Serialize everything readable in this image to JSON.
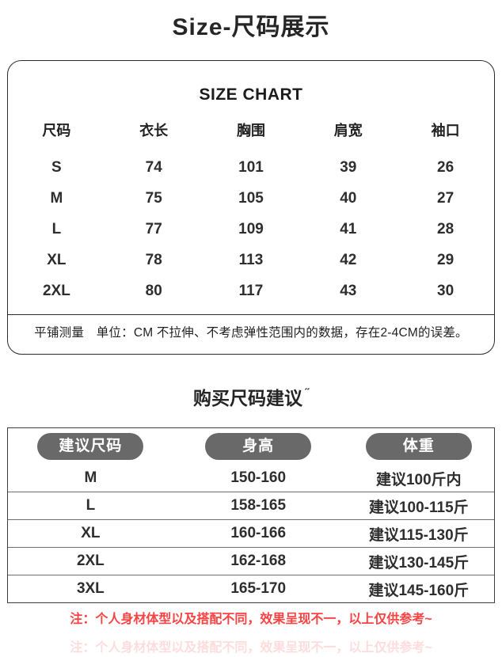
{
  "page": {
    "title": "Size-尺码展示"
  },
  "size_chart": {
    "heading": "SIZE CHART",
    "columns": [
      "尺码",
      "衣长",
      "胸围",
      "肩宽",
      "袖口"
    ],
    "rows": [
      [
        "S",
        "74",
        "101",
        "39",
        "26"
      ],
      [
        "M",
        "75",
        "105",
        "40",
        "27"
      ],
      [
        "L",
        "77",
        "109",
        "41",
        "28"
      ],
      [
        "XL",
        "78",
        "113",
        "42",
        "29"
      ],
      [
        "2XL",
        "80",
        "117",
        "43",
        "30"
      ]
    ],
    "note": "平铺测量　单位：CM 不拉伸、不考虑弹性范围内的数据，存在2-4CM的误差。"
  },
  "suggestion": {
    "heading": "购买尺码建议",
    "heading_mark": "ˊˊ",
    "columns": [
      "建议尺码",
      "身高",
      "体重"
    ],
    "rows": [
      [
        "M",
        "150-160",
        "建议100斤内"
      ],
      [
        "L",
        "158-165",
        "建议100-115斤"
      ],
      [
        "XL",
        "160-166",
        "建议115-130斤"
      ],
      [
        "2XL",
        "162-168",
        "建议130-145斤"
      ],
      [
        "3XL",
        "165-170",
        "建议145-160斤"
      ]
    ]
  },
  "footer_note": "注：个人身材体型以及搭配不同，效果呈现不一，以上仅供参考~",
  "colors": {
    "accent_red": "#fb4242",
    "pill_gray": "#696969",
    "border_dark": "#2a2a2a"
  }
}
